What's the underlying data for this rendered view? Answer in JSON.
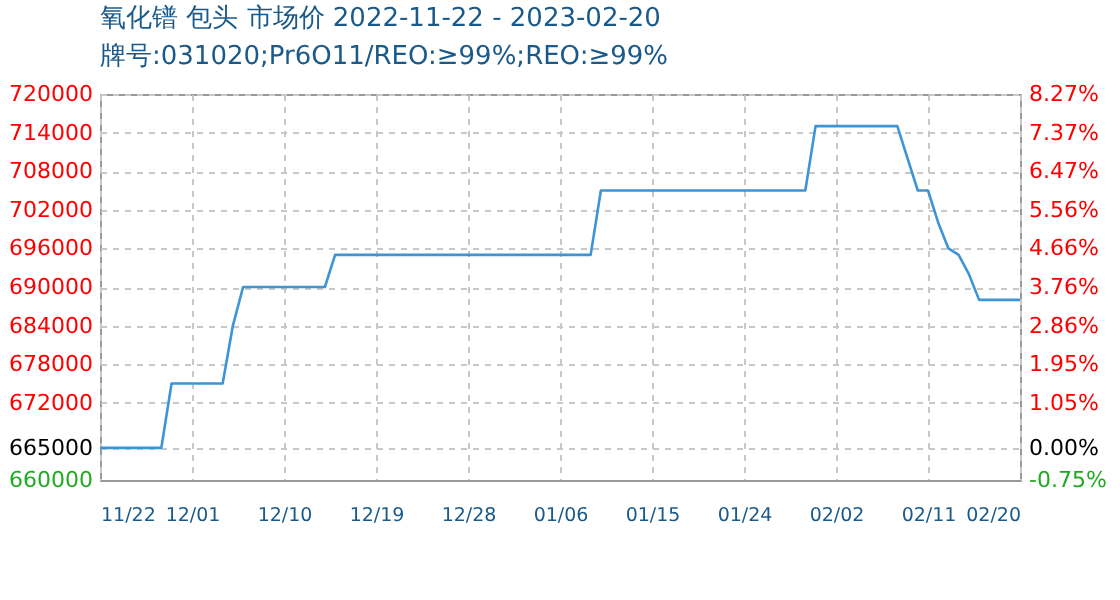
{
  "chart_data": {
    "type": "line",
    "title": "氧化镨 包头 市场价 2022-11-22 - 2023-02-20",
    "subtitle": "牌号:031020;Pr6O11/REO:≥99%;REO:≥99%",
    "x": [
      "2022-11-22",
      "2022-11-28",
      "2022-11-29",
      "2022-12-04",
      "2022-12-05",
      "2022-12-06",
      "2022-12-14",
      "2022-12-15",
      "2023-01-09",
      "2023-01-10",
      "2023-01-30",
      "2023-01-31",
      "2023-02-08",
      "2023-02-09",
      "2023-02-10",
      "2023-02-11",
      "2023-02-12",
      "2023-02-13",
      "2023-02-14",
      "2023-02-15",
      "2023-02-16",
      "2023-02-20"
    ],
    "series": [
      {
        "color": "#3d94d6",
        "values": [
          665000,
          665000,
          675000,
          675000,
          684000,
          690000,
          690000,
          695000,
          695000,
          705000,
          705000,
          715000,
          715000,
          710000,
          705000,
          705000,
          700000,
          696000,
          695000,
          692000,
          688000,
          688000
        ]
      }
    ],
    "xlim": [
      "2022-11-22",
      "2023-02-20"
    ],
    "xticks": [
      {
        "value": "2022-11-22",
        "label": "11/22"
      },
      {
        "value": "2022-12-01",
        "label": "12/01"
      },
      {
        "value": "2022-12-10",
        "label": "12/10"
      },
      {
        "value": "2022-12-19",
        "label": "12/19"
      },
      {
        "value": "2022-12-28",
        "label": "12/28"
      },
      {
        "value": "2023-01-06",
        "label": "01/06"
      },
      {
        "value": "2023-01-15",
        "label": "01/15"
      },
      {
        "value": "2023-01-24",
        "label": "01/24"
      },
      {
        "value": "2023-02-02",
        "label": "02/02"
      },
      {
        "value": "2023-02-11",
        "label": "02/11"
      },
      {
        "value": "2023-02-20",
        "label": "02/20"
      }
    ],
    "ylim": [
      660000,
      720000
    ],
    "yticks": [
      660000,
      665000,
      672000,
      678000,
      684000,
      690000,
      696000,
      702000,
      708000,
      714000,
      720000
    ],
    "y2lim": [
      -0.75,
      8.27
    ],
    "y2ticks": [
      {
        "value": -0.75,
        "label": "-0.75%"
      },
      {
        "value": 0,
        "label": "0.00%"
      },
      {
        "value": 1.05,
        "label": "1.05%"
      },
      {
        "value": 1.95,
        "label": "1.95%"
      },
      {
        "value": 2.86,
        "label": "2.86%"
      },
      {
        "value": 3.76,
        "label": "3.76%"
      },
      {
        "value": 4.66,
        "label": "4.66%"
      },
      {
        "value": 5.56,
        "label": "5.56%"
      },
      {
        "value": 6.47,
        "label": "6.47%"
      },
      {
        "value": 7.37,
        "label": "7.37%"
      },
      {
        "value": 8.27,
        "label": "8.27%"
      }
    ],
    "grid": true,
    "line_style": "solid",
    "marker": "none"
  }
}
